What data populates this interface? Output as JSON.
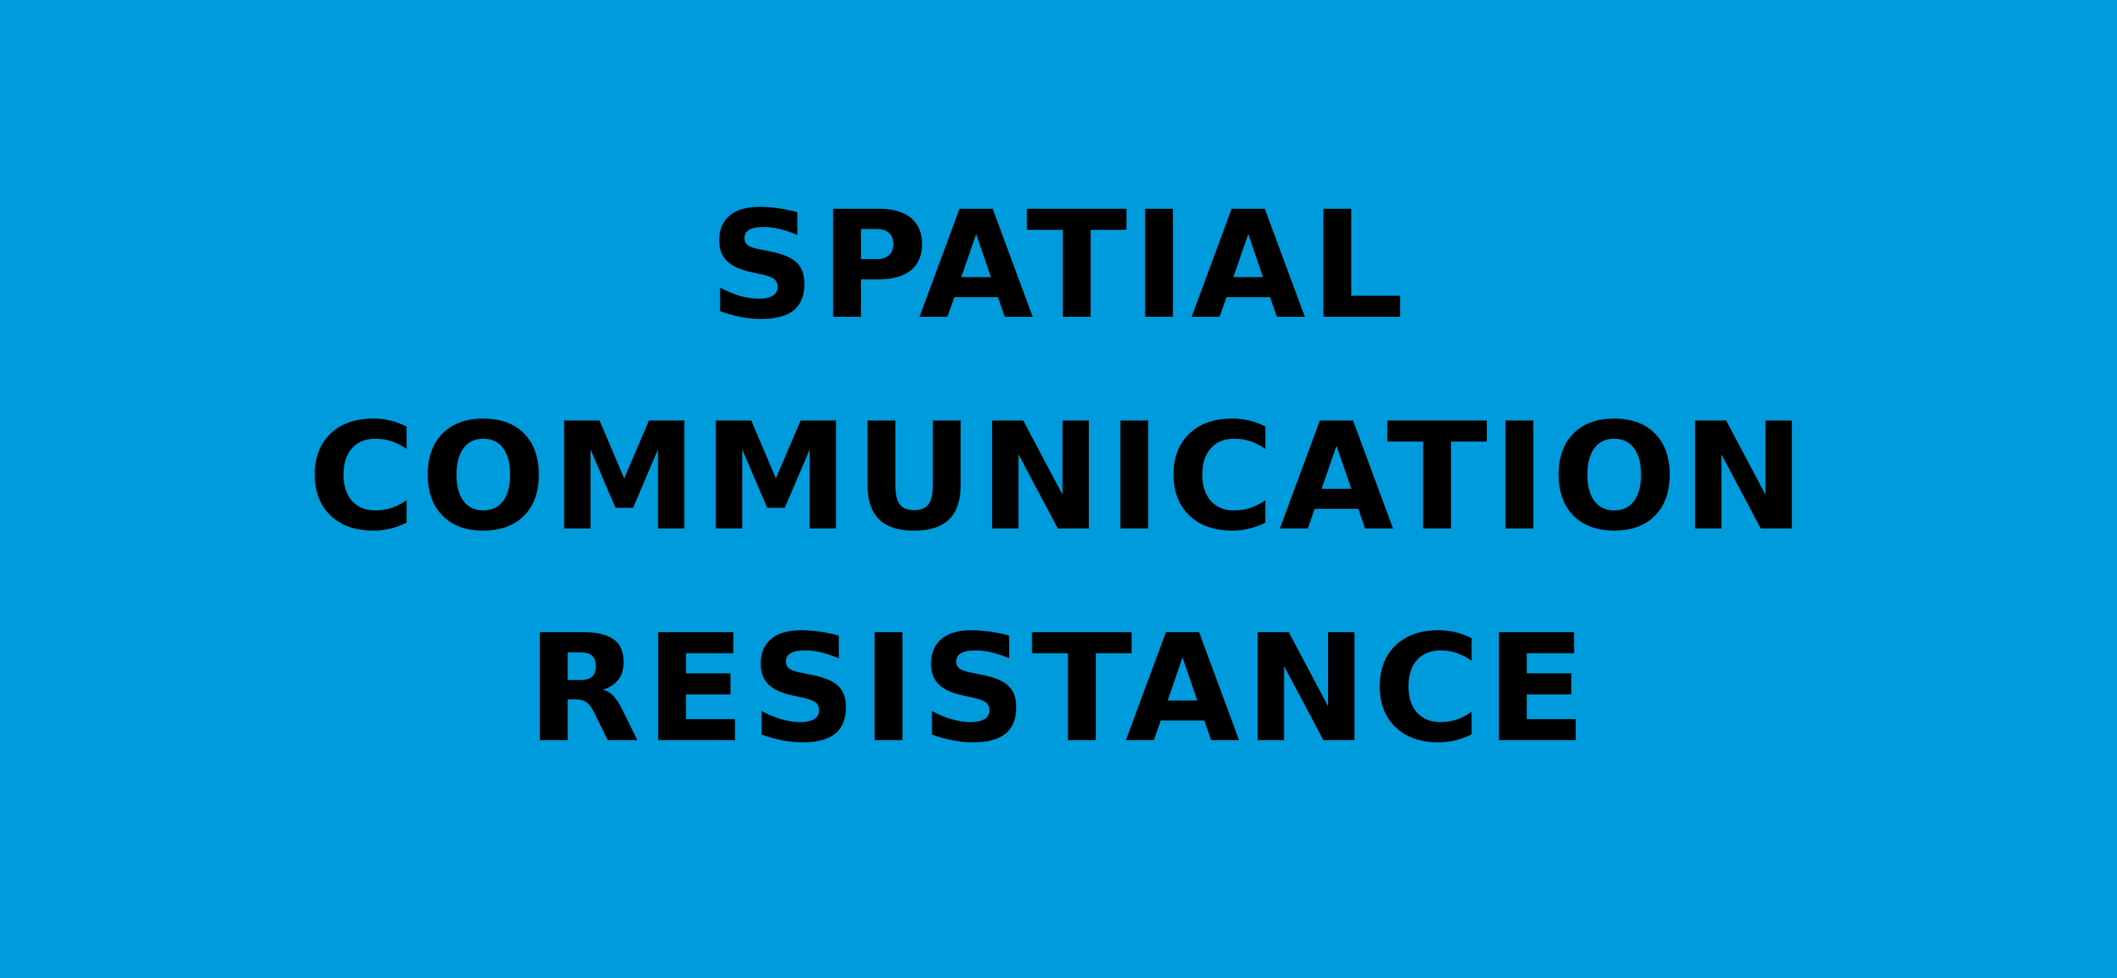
{
  "colors": {
    "background": "#009BDC",
    "text": "#000000"
  },
  "title": {
    "lines": [
      "SPATIAL",
      "COMMUNICATION",
      "RESISTANCE"
    ]
  }
}
